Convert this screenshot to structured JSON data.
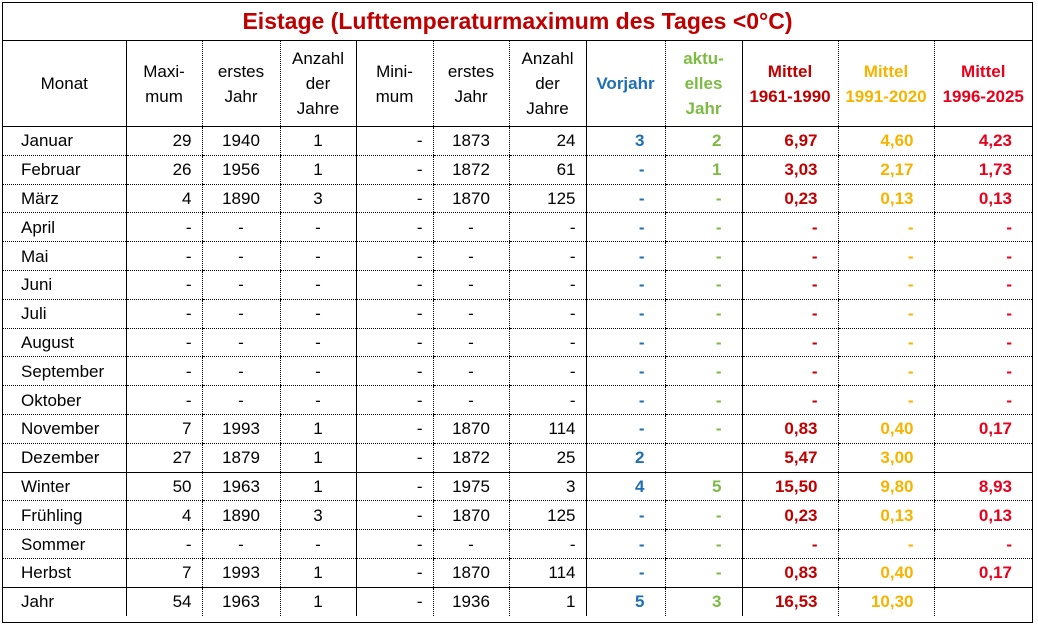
{
  "title": "Eistage (Lufttemperaturmaximum des Tages <0°C)",
  "colors": {
    "title": "#c00000",
    "vorjahr": "#1f6fb4",
    "aktuelles_jahr": "#7dbb44",
    "mittel_1961_1990": "#c00000",
    "mittel_1991_2020": "#f6b400",
    "mittel_1996_2025": "#e8001c"
  },
  "headers": {
    "monat": "Monat",
    "maximum": [
      "Maxi-",
      "mum"
    ],
    "erstes_jahr_max": [
      "erstes",
      "Jahr"
    ],
    "anzahl_max": [
      "Anzahl",
      "der",
      "Jahre"
    ],
    "minimum": [
      "Mini-",
      "mum"
    ],
    "erstes_jahr_min": [
      "erstes",
      "Jahr"
    ],
    "anzahl_min": [
      "Anzahl",
      "der",
      "Jahre"
    ],
    "vorjahr": [
      "Vorjahr"
    ],
    "aktuelles_jahr": [
      "aktu-",
      "elles",
      "Jahr"
    ],
    "mittel_1961_1990": [
      "Mittel",
      "1961-1990"
    ],
    "mittel_1991_2020": [
      "Mittel",
      "1991-2020"
    ],
    "mittel_1996_2025": [
      "Mittel",
      "1996-2025"
    ]
  },
  "rows": [
    [
      "Januar",
      "29",
      "1940",
      "1",
      "-",
      "1873",
      "24",
      "3",
      "2",
      "6,97",
      "4,60",
      "4,23"
    ],
    [
      "Februar",
      "26",
      "1956",
      "1",
      "-",
      "1872",
      "61",
      "-",
      "1",
      "3,03",
      "2,17",
      "1,73"
    ],
    [
      "März",
      "4",
      "1890",
      "3",
      "-",
      "1870",
      "125",
      "-",
      "-",
      "0,23",
      "0,13",
      "0,13"
    ],
    [
      "April",
      "-",
      "-",
      "-",
      "-",
      "-",
      "-",
      "-",
      "-",
      "-",
      "-",
      "-"
    ],
    [
      "Mai",
      "-",
      "-",
      "-",
      "-",
      "-",
      "-",
      "-",
      "-",
      "-",
      "-",
      "-"
    ],
    [
      "Juni",
      "-",
      "-",
      "-",
      "-",
      "-",
      "-",
      "-",
      "-",
      "-",
      "-",
      "-"
    ],
    [
      "Juli",
      "-",
      "-",
      "-",
      "-",
      "-",
      "-",
      "-",
      "-",
      "-",
      "-",
      "-"
    ],
    [
      "August",
      "-",
      "-",
      "-",
      "-",
      "-",
      "-",
      "-",
      "-",
      "-",
      "-",
      "-"
    ],
    [
      "September",
      "-",
      "-",
      "-",
      "-",
      "-",
      "-",
      "-",
      "-",
      "-",
      "-",
      "-"
    ],
    [
      "Oktober",
      "-",
      "-",
      "-",
      "-",
      "-",
      "-",
      "-",
      "-",
      "-",
      "-",
      "-"
    ],
    [
      "November",
      "7",
      "1993",
      "1",
      "-",
      "1870",
      "114",
      "-",
      "-",
      "0,83",
      "0,40",
      "0,17"
    ],
    [
      "Dezember",
      "27",
      "1879",
      "1",
      "-",
      "1872",
      "25",
      "2",
      "",
      "5,47",
      "3,00",
      ""
    ],
    [
      "Winter",
      "50",
      "1963",
      "1",
      "-",
      "1975",
      "3",
      "4",
      "5",
      "15,50",
      "9,80",
      "8,93"
    ],
    [
      "Frühling",
      "4",
      "1890",
      "3",
      "-",
      "1870",
      "125",
      "-",
      "-",
      "0,23",
      "0,13",
      "0,13"
    ],
    [
      "Sommer",
      "-",
      "-",
      "-",
      "-",
      "-",
      "-",
      "-",
      "-",
      "-",
      "-",
      "-"
    ],
    [
      "Herbst",
      "7",
      "1993",
      "1",
      "-",
      "1870",
      "114",
      "-",
      "-",
      "0,83",
      "0,40",
      "0,17"
    ],
    [
      "Jahr",
      "54",
      "1963",
      "1",
      "-",
      "1936",
      "1",
      "5",
      "3",
      "16,53",
      "10,30",
      ""
    ]
  ]
}
